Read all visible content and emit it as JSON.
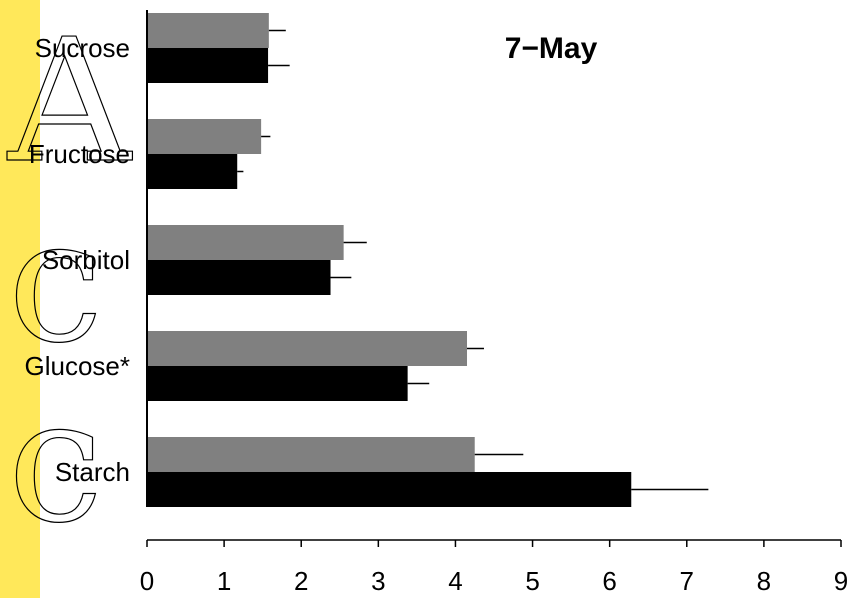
{
  "chart_data": {
    "type": "bar",
    "orientation": "horizontal",
    "title": "7−May",
    "categories": [
      "Starch",
      "Glucose*",
      "Sorbitol",
      "Fructose",
      "Sucrose"
    ],
    "series": [
      {
        "color": "#808080",
        "values": [
          4.25,
          4.15,
          2.55,
          1.48,
          1.58
        ],
        "errors": [
          0.63,
          0.22,
          0.3,
          0.12,
          0.22
        ]
      },
      {
        "color": "#000000",
        "values": [
          6.28,
          3.38,
          2.38,
          1.17,
          1.57
        ],
        "errors": [
          1.0,
          0.28,
          0.27,
          0.08,
          0.28
        ]
      }
    ],
    "xlim": [
      0,
      9
    ],
    "xticks": [
      "0",
      "1",
      "2",
      "3",
      "4",
      "5",
      "6",
      "7",
      "8",
      "9"
    ],
    "xlabel": "",
    "ylabel": "",
    "grid": false,
    "legend": "none"
  },
  "watermark": {
    "text": "Accepted",
    "color": "#ffe85a"
  }
}
